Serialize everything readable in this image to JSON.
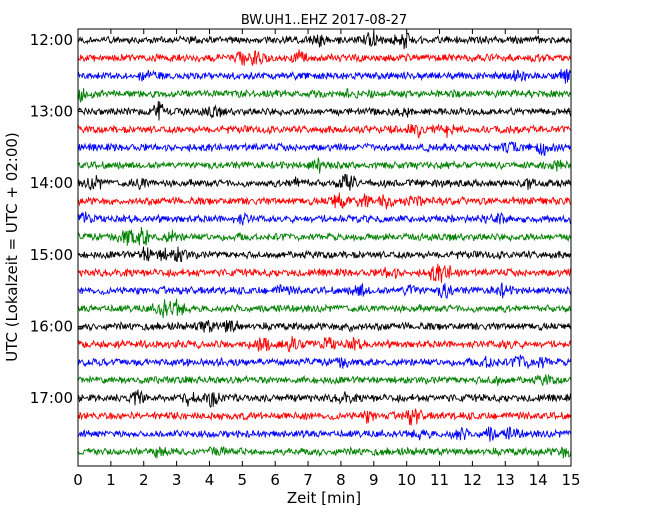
{
  "chart_data": {
    "type": "line",
    "title": "BW.UH1..EHZ 2017-08-27",
    "xlabel": "Zeit  [min]",
    "ylabel": "UTC (Lokalzeit = UTC + 02:00)",
    "xlim": [
      0,
      15
    ],
    "x_ticks": [
      "0",
      "1",
      "2",
      "3",
      "4",
      "5",
      "6",
      "7",
      "8",
      "9",
      "10",
      "11",
      "12",
      "13",
      "14",
      "15"
    ],
    "y_ticks": [
      "12:00",
      "13:00",
      "14:00",
      "15:00",
      "16:00",
      "17:00"
    ],
    "grid": false,
    "trace_minutes": 15,
    "color_cycle": [
      "#000000",
      "#ff0000",
      "#0000ff",
      "#008000"
    ],
    "traces": [
      {
        "start": "12:00",
        "color": "#000000",
        "events": [
          [
            8.9,
            1.8
          ],
          [
            9.9,
            1.6
          ],
          [
            7.3,
            1.2
          ]
        ]
      },
      {
        "start": "12:15",
        "color": "#ff0000",
        "events": [
          [
            5.4,
            1.5
          ],
          [
            6.7,
            1.3
          ],
          [
            5.0,
            1.0
          ]
        ]
      },
      {
        "start": "12:30",
        "color": "#0000ff",
        "events": [
          [
            2.0,
            1.0
          ],
          [
            14.9,
            1.4
          ],
          [
            13.4,
            0.9
          ]
        ]
      },
      {
        "start": "12:45",
        "color": "#008000",
        "events": [
          [
            0.1,
            1.3
          ],
          [
            8.3,
            1.0
          ]
        ]
      },
      {
        "start": "13:00",
        "color": "#000000",
        "events": [
          [
            2.5,
            1.8
          ],
          [
            4.1,
            1.1
          ],
          [
            9.9,
            1.0
          ]
        ]
      },
      {
        "start": "13:15",
        "color": "#ff0000",
        "events": [
          [
            10.3,
            1.6
          ],
          [
            11.2,
            1.1
          ]
        ]
      },
      {
        "start": "13:30",
        "color": "#0000ff",
        "events": [
          [
            14.1,
            1.7
          ],
          [
            13.2,
            1.0
          ]
        ]
      },
      {
        "start": "13:45",
        "color": "#008000",
        "events": [
          [
            7.3,
            1.6
          ],
          [
            14.6,
            0.8
          ]
        ]
      },
      {
        "start": "14:00",
        "color": "#000000",
        "events": [
          [
            0.5,
            1.4
          ],
          [
            6.7,
            1.3
          ],
          [
            8.2,
            2.2
          ],
          [
            1.9,
            1.0
          ],
          [
            13.6,
            0.8
          ]
        ]
      },
      {
        "start": "14:15",
        "color": "#ff0000",
        "events": [
          [
            7.9,
            1.9
          ],
          [
            8.7,
            1.4
          ],
          [
            9.4,
            1.2
          ],
          [
            10.3,
            1.0
          ]
        ]
      },
      {
        "start": "14:30",
        "color": "#0000ff",
        "events": [
          [
            0.2,
            1.1
          ],
          [
            5.0,
            0.9
          ],
          [
            12.8,
            0.8
          ]
        ]
      },
      {
        "start": "14:45",
        "color": "#008000",
        "events": [
          [
            1.5,
            2.0
          ],
          [
            2.0,
            1.8
          ],
          [
            2.8,
            1.0
          ]
        ]
      },
      {
        "start": "15:00",
        "color": "#000000",
        "events": [
          [
            2.1,
            1.7
          ],
          [
            3.1,
            1.6
          ],
          [
            2.6,
            1.1
          ]
        ]
      },
      {
        "start": "15:15",
        "color": "#ff0000",
        "events": [
          [
            9.5,
            1.4
          ],
          [
            10.9,
            1.8
          ],
          [
            11.3,
            1.2
          ]
        ]
      },
      {
        "start": "15:30",
        "color": "#0000ff",
        "events": [
          [
            8.6,
            1.3
          ],
          [
            10.1,
            1.5
          ],
          [
            11.2,
            1.7
          ],
          [
            12.9,
            1.3
          ],
          [
            6.2,
            0.8
          ]
        ]
      },
      {
        "start": "15:45",
        "color": "#008000",
        "events": [
          [
            2.6,
            2.1
          ],
          [
            3.0,
            1.5
          ]
        ]
      },
      {
        "start": "16:00",
        "color": "#000000",
        "events": [
          [
            4.6,
            1.7
          ],
          [
            3.9,
            1.1
          ],
          [
            8.3,
            0.8
          ]
        ]
      },
      {
        "start": "16:15",
        "color": "#ff0000",
        "events": [
          [
            5.6,
            1.4
          ],
          [
            6.5,
            1.2
          ],
          [
            7.6,
            1.3
          ],
          [
            8.4,
            1.0
          ],
          [
            13.1,
            0.9
          ]
        ]
      },
      {
        "start": "16:30",
        "color": "#0000ff",
        "events": [
          [
            12.5,
            1.4
          ],
          [
            13.5,
            1.7
          ],
          [
            14.1,
            1.0
          ],
          [
            8.0,
            0.8
          ]
        ]
      },
      {
        "start": "16:45",
        "color": "#008000",
        "events": [
          [
            12.7,
            0.9
          ],
          [
            14.2,
            0.8
          ]
        ]
      },
      {
        "start": "17:00",
        "color": "#000000",
        "events": [
          [
            1.8,
            1.6
          ],
          [
            3.3,
            1.2
          ],
          [
            4.1,
            1.5
          ],
          [
            8.1,
            0.9
          ]
        ]
      },
      {
        "start": "17:15",
        "color": "#ff0000",
        "events": [
          [
            10.2,
            1.7
          ],
          [
            8.8,
            1.0
          ]
        ]
      },
      {
        "start": "17:30",
        "color": "#0000ff",
        "events": [
          [
            11.6,
            1.3
          ],
          [
            12.5,
            1.4
          ],
          [
            13.2,
            1.2
          ],
          [
            10.5,
            0.9
          ]
        ]
      },
      {
        "start": "17:45",
        "color": "#008000",
        "events": [
          [
            4.3,
            1.6
          ],
          [
            2.5,
            0.9
          ],
          [
            14.8,
            1.0
          ]
        ]
      }
    ]
  }
}
